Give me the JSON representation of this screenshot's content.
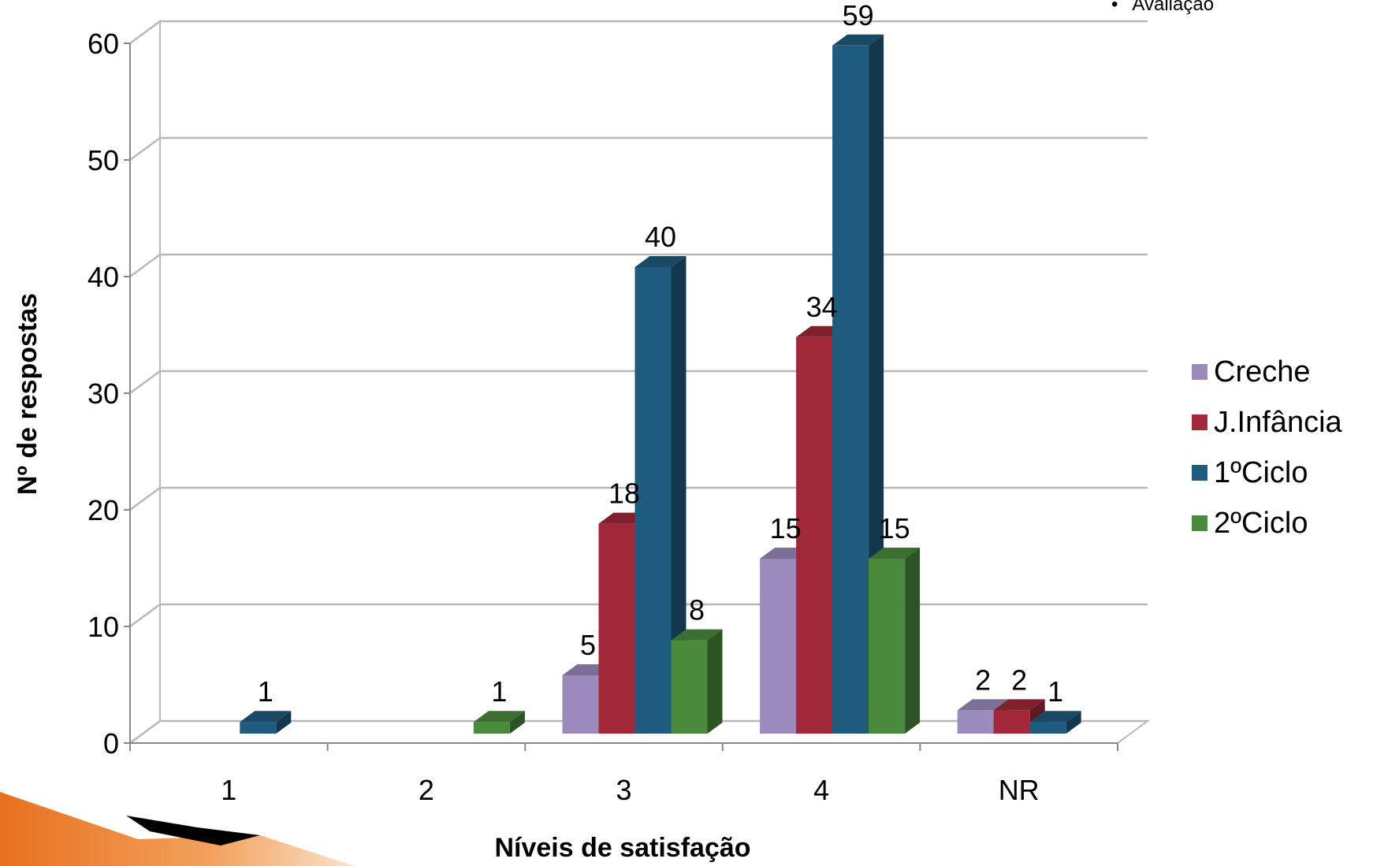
{
  "top_note": {
    "bullet": "•",
    "text": "Avaliação"
  },
  "chart_data": {
    "type": "bar",
    "title": "",
    "xlabel": "Níveis de satisfação",
    "ylabel": "Nº de respostas",
    "ylim": [
      0,
      60
    ],
    "yticks": [
      0,
      10,
      20,
      30,
      40,
      50,
      60
    ],
    "grid": true,
    "legend_position": "right",
    "categories": [
      "1",
      "2",
      "3",
      "4",
      "NR"
    ],
    "series": [
      {
        "name": "Creche",
        "color": "#9b8bbd",
        "values": [
          null,
          null,
          5,
          15,
          2
        ]
      },
      {
        "name": "J.Infância",
        "color": "#a02838",
        "values": [
          null,
          null,
          18,
          34,
          2
        ]
      },
      {
        "name": "1ºCiclo",
        "color": "#1f5b7e",
        "values": [
          1,
          null,
          40,
          59,
          1
        ]
      },
      {
        "name": "2ºCiclo",
        "color": "#4a8a3c",
        "values": [
          null,
          1,
          8,
          15,
          null
        ]
      }
    ]
  }
}
